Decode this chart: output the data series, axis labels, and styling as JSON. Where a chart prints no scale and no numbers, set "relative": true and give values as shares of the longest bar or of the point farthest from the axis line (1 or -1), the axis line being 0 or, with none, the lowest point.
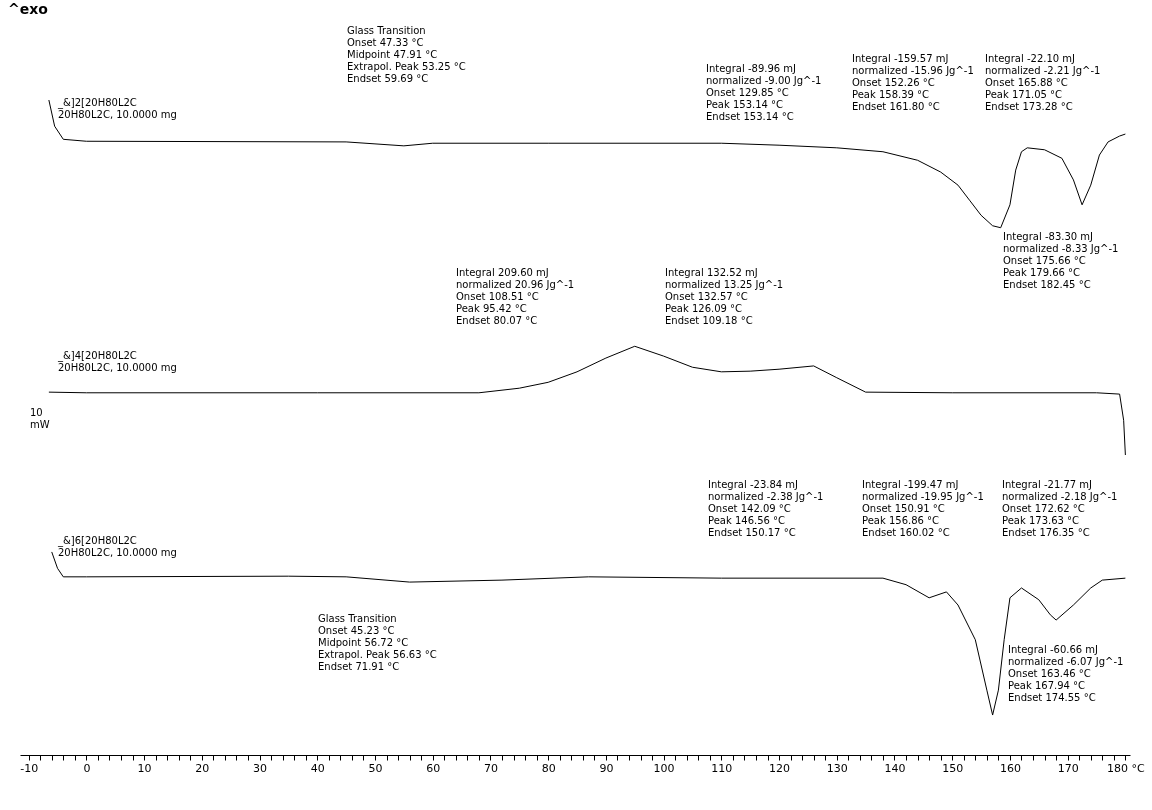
{
  "chart_data": {
    "type": "line",
    "relative": true,
    "xlim": [
      -11.5,
      180.8
    ],
    "xticks": [
      -10,
      {
        "value": -8,
        "label": null
      },
      {
        "value": -6,
        "label": null
      },
      {
        "value": -4,
        "label": null
      },
      {
        "value": -2,
        "label": null
      },
      0,
      {
        "value": 2,
        "label": null
      },
      {
        "value": 4,
        "label": null
      },
      {
        "value": 6,
        "label": null
      },
      {
        "value": 8,
        "label": null
      },
      10,
      {
        "value": 12,
        "label": null
      },
      {
        "value": 14,
        "label": null
      },
      {
        "value": 16,
        "label": null
      },
      {
        "value": 18,
        "label": null
      },
      20,
      {
        "value": 22,
        "label": null
      },
      {
        "value": 24,
        "label": null
      },
      {
        "value": 26,
        "label": null
      },
      {
        "value": 28,
        "label": null
      },
      30,
      {
        "value": 32,
        "label": null
      },
      {
        "value": 34,
        "label": null
      },
      {
        "value": 36,
        "label": null
      },
      {
        "value": 38,
        "label": null
      },
      40,
      {
        "value": 42,
        "label": null
      },
      {
        "value": 44,
        "label": null
      },
      {
        "value": 46,
        "label": null
      },
      {
        "value": 48,
        "label": null
      },
      50,
      {
        "value": 52,
        "label": null
      },
      {
        "value": 54,
        "label": null
      },
      {
        "value": 56,
        "label": null
      },
      {
        "value": 58,
        "label": null
      },
      60,
      {
        "value": 62,
        "label": null
      },
      {
        "value": 64,
        "label": null
      },
      {
        "value": 66,
        "label": null
      },
      {
        "value": 68,
        "label": null
      },
      70,
      {
        "value": 72,
        "label": null
      },
      {
        "value": 74,
        "label": null
      },
      {
        "value": 76,
        "label": null
      },
      {
        "value": 78,
        "label": null
      },
      80,
      {
        "value": 82,
        "label": null
      },
      {
        "value": 84,
        "label": null
      },
      {
        "value": 86,
        "label": null
      },
      {
        "value": 88,
        "label": null
      },
      90,
      {
        "value": 92,
        "label": null
      },
      {
        "value": 94,
        "label": null
      },
      {
        "value": 96,
        "label": null
      },
      {
        "value": 98,
        "label": null
      },
      100,
      {
        "value": 102,
        "label": null
      },
      {
        "value": 104,
        "label": null
      },
      {
        "value": 106,
        "label": null
      },
      {
        "value": 108,
        "label": null
      },
      110,
      {
        "value": 112,
        "label": null
      },
      {
        "value": 114,
        "label": null
      },
      {
        "value": 116,
        "label": null
      },
      {
        "value": 118,
        "label": null
      },
      120,
      {
        "value": 122,
        "label": null
      },
      {
        "value": 124,
        "label": null
      },
      {
        "value": 126,
        "label": null
      },
      {
        "value": 128,
        "label": null
      },
      130,
      {
        "value": 132,
        "label": null
      },
      {
        "value": 134,
        "label": null
      },
      {
        "value": 136,
        "label": null
      },
      {
        "value": 138,
        "label": null
      },
      140,
      {
        "value": 142,
        "label": null
      },
      {
        "value": 144,
        "label": null
      },
      {
        "value": 146,
        "label": null
      },
      {
        "value": 148,
        "label": null
      },
      150,
      {
        "value": 152,
        "label": null
      },
      {
        "value": 154,
        "label": null
      },
      {
        "value": 156,
        "label": null
      },
      {
        "value": 158,
        "label": null
      },
      160,
      {
        "value": 162,
        "label": null
      },
      {
        "value": 164,
        "label": null
      },
      {
        "value": 166,
        "label": null
      },
      {
        "value": 168,
        "label": null
      },
      170,
      {
        "value": 172,
        "label": null
      },
      {
        "value": 174,
        "label": null
      },
      {
        "value": 176,
        "label": null
      },
      {
        "value": 178,
        "label": null
      },
      {
        "value": 180,
        "label": "180 °C"
      }
    ],
    "series": [
      {
        "name": "_&]2[20H80L2C\n20H80L2C, 10.0000 mg",
        "color": "#000000",
        "x": [
          -6.5,
          -5.5,
          -4,
          0,
          45,
          50,
          55,
          60,
          80,
          110,
          120,
          130,
          138,
          144,
          148,
          151,
          153,
          155,
          157,
          158.4,
          160,
          161,
          162,
          163,
          166,
          169,
          171,
          172.5,
          174,
          175.5,
          177,
          179,
          180
        ],
        "values": [
          1,
          0.96,
          0.94,
          0.937,
          0.936,
          0.933,
          0.93,
          0.934,
          0.934,
          0.934,
          0.931,
          0.927,
          0.921,
          0.908,
          0.89,
          0.87,
          0.847,
          0.824,
          0.808,
          0.805,
          0.84,
          0.893,
          0.921,
          0.927,
          0.924,
          0.911,
          0.878,
          0.84,
          0.87,
          0.916,
          0.936,
          0.945,
          0.948
        ]
      },
      {
        "name": "_&]4[20H80L2C\n20H80L2C, 10.0000 mg",
        "color": "#000000",
        "x": [
          -6.5,
          0,
          40,
          68,
          75,
          80,
          85,
          90,
          95,
          100,
          105,
          110,
          115,
          120,
          126,
          130,
          135,
          150,
          175,
          179,
          179.7,
          180
        ],
        "values": [
          0.554,
          0.553,
          0.553,
          0.553,
          0.56,
          0.569,
          0.585,
          0.606,
          0.624,
          0.609,
          0.592,
          0.585,
          0.586,
          0.589,
          0.594,
          0.576,
          0.554,
          0.553,
          0.553,
          0.551,
          0.511,
          0.458
        ]
      },
      {
        "name": "_&]6[20H80L2C\n20H80L2C, 10.0000 mg",
        "color": "#000000",
        "x": [
          -6,
          -5,
          -4,
          0,
          35,
          45,
          56,
          72,
          87,
          110,
          138,
          142,
          146,
          149,
          151,
          154,
          156,
          157,
          158,
          159,
          160,
          162,
          165,
          167,
          168,
          171,
          174,
          176,
          180
        ],
        "values": [
          0.31,
          0.285,
          0.272,
          0.272,
          0.273,
          0.272,
          0.264,
          0.267,
          0.272,
          0.27,
          0.27,
          0.26,
          0.24,
          0.249,
          0.229,
          0.176,
          0.099,
          0.061,
          0.099,
          0.176,
          0.24,
          0.255,
          0.237,
          0.214,
          0.206,
          0.229,
          0.255,
          0.267,
          0.27
        ]
      }
    ],
    "annotations": [
      "^exo",
      "Glass Transition\nOnset 47.33 °C\nMidpoint 47.91 °C\nExtrapol. Peak 53.25 °C\nEndset 59.69 °C",
      "Integral -89.96 mJ\n  normalized -9.00 Jg^-1\nOnset 129.85 °C\nPeak 153.14 °C\nEndset 153.14 °C",
      "Integral -159.57 mJ\n  normalized -15.96 Jg^-1\nOnset 152.26 °C\nPeak 158.39 °C\nEndset 161.80 °C",
      "Integral -22.10 mJ\n  normalized -2.21 Jg^-1\nOnset 165.88 °C\nPeak 171.05 °C\nEndset 173.28 °C",
      "Integral -83.30 mJ\n  normalized -8.33 Jg^-1\nOnset 175.66 °C\nPeak 179.66 °C\nEndset 182.45 °C",
      "Integral 209.60 mJ\n  normalized 20.96 Jg^-1\nOnset 108.51 °C\nPeak 95.42 °C\nEndset 80.07 °C",
      "Integral 132.52 mJ\n  normalized 13.25 Jg^-1\nOnset 132.57 °C\nPeak 126.09 °C\nEndset 109.18 °C",
      "10\nmW",
      "Integral -23.84 mJ\n  normalized -2.38 Jg^-1\nOnset 142.09 °C\nPeak 146.56 °C\nEndset 150.17 °C",
      "Integral -199.47 mJ\n  normalized -19.95 Jg^-1\nOnset 150.91 °C\nPeak 156.86 °C\nEndset 160.02 °C",
      "Integral -21.77 mJ\n  normalized -2.18 Jg^-1\nOnset 172.62 °C\nPeak 173.63 °C\nEndset 176.35 °C",
      "Glass Transition\nOnset 45.23 °C\nMidpoint 56.72 °C\nExtrapol. Peak 56.63 °C\nEndset 71.91 °C",
      "Integral -60.66 mJ\n  normalized -6.07 Jg^-1\nOnset 163.46 °C\nPeak 167.94 °C\nEndset 174.55 °C"
    ]
  }
}
